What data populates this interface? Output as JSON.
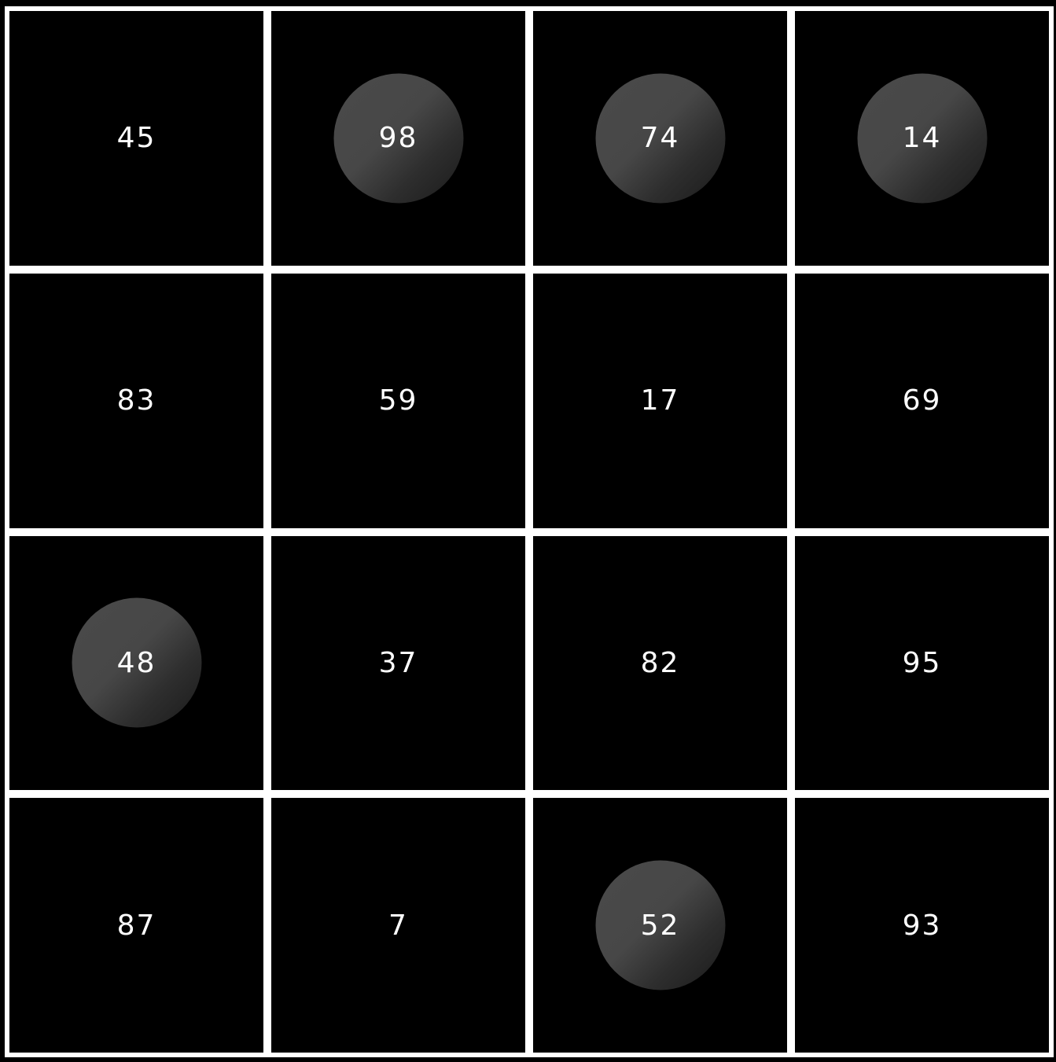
{
  "board": {
    "rows": 4,
    "cols": 4,
    "cells": [
      {
        "value": "45",
        "marked": false
      },
      {
        "value": "98",
        "marked": true
      },
      {
        "value": "74",
        "marked": true
      },
      {
        "value": "14",
        "marked": true
      },
      {
        "value": "83",
        "marked": false
      },
      {
        "value": "59",
        "marked": false
      },
      {
        "value": "17",
        "marked": false
      },
      {
        "value": "69",
        "marked": false
      },
      {
        "value": "48",
        "marked": true
      },
      {
        "value": "37",
        "marked": false
      },
      {
        "value": "82",
        "marked": false
      },
      {
        "value": "95",
        "marked": false
      },
      {
        "value": "87",
        "marked": false
      },
      {
        "value": "7",
        "marked": false
      },
      {
        "value": "52",
        "marked": true
      },
      {
        "value": "93",
        "marked": false
      }
    ]
  },
  "colors": {
    "background": "#000000",
    "grid_lines": "#ffffff",
    "stone": "#474747",
    "text": "#ffffff"
  }
}
